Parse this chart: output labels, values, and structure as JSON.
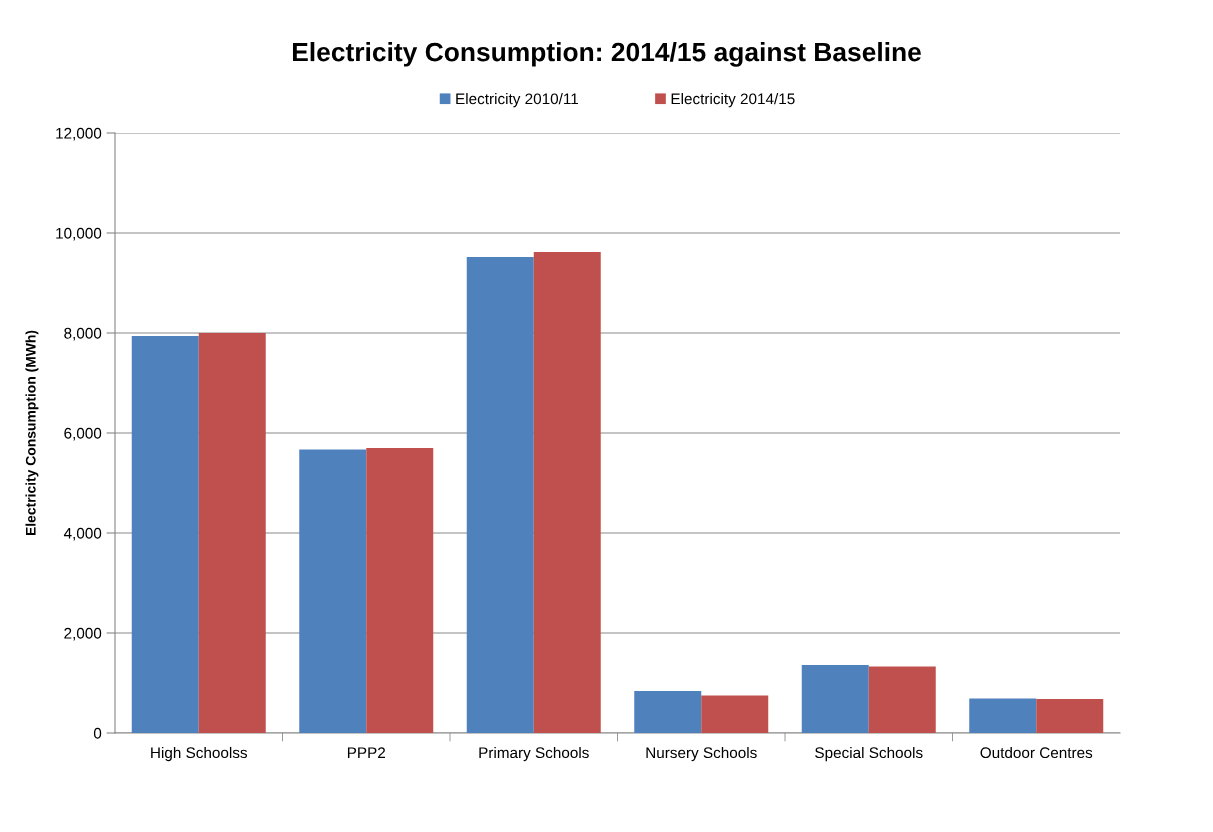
{
  "chart_data": {
    "type": "bar",
    "title": "Electricity Consumption: 2014/15 against Baseline",
    "ylabel": "Electricity Consumption (MWh)",
    "categories": [
      "High Schoolss",
      "PPP2",
      "Primary Schools",
      "Nursery Schools",
      "Special Schools",
      "Outdoor Centres"
    ],
    "series": [
      {
        "name": "Electricity 2010/11",
        "color": "#4f81bd",
        "values": [
          7940,
          5670,
          9520,
          840,
          1360,
          690
        ]
      },
      {
        "name": "Electricity 2014/15",
        "color": "#c0504d",
        "values": [
          8000,
          5700,
          9620,
          750,
          1330,
          680
        ]
      }
    ],
    "ylim": [
      0,
      12000
    ],
    "yticks": [
      {
        "value": 0,
        "label": "0"
      },
      {
        "value": 2000,
        "label": "2,000"
      },
      {
        "value": 4000,
        "label": "4,000"
      },
      {
        "value": 6000,
        "label": "6,000"
      },
      {
        "value": 8000,
        "label": "8,000"
      },
      {
        "value": 10000,
        "label": "10,000"
      },
      {
        "value": 12000,
        "label": "12,000"
      }
    ],
    "grid": "y",
    "legend": "top"
  }
}
